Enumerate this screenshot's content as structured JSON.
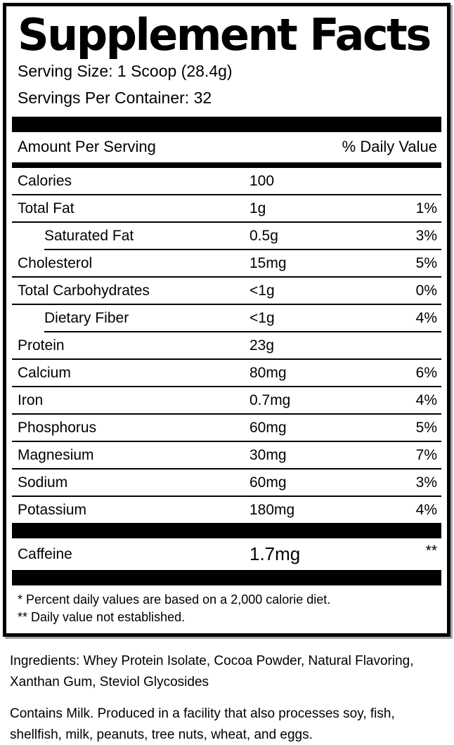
{
  "label": {
    "title": "Supplement Facts",
    "serving_size": "Serving Size: 1 Scoop (28.4g)",
    "servings_per_container": "Servings Per Container: 32",
    "columns": {
      "amount": "Amount Per Serving",
      "daily_value": "% Daily Value"
    },
    "rows": [
      {
        "name": "Calories",
        "amount": "100",
        "dv": "",
        "indent": false
      },
      {
        "name": "Total Fat",
        "amount": "1g",
        "dv": "1%",
        "indent": false
      },
      {
        "name": "Saturated Fat",
        "amount": "0.5g",
        "dv": "3%",
        "indent": true
      },
      {
        "name": "Cholesterol",
        "amount": "15mg",
        "dv": "5%",
        "indent": false
      },
      {
        "name": "Total Carbohydrates",
        "amount": "<1g",
        "dv": "0%",
        "indent": false
      },
      {
        "name": "Dietary Fiber",
        "amount": "<1g",
        "dv": "4%",
        "indent": true
      },
      {
        "name": "Protein",
        "amount": "23g",
        "dv": "",
        "indent": false
      },
      {
        "name": "Calcium",
        "amount": "80mg",
        "dv": "6%",
        "indent": false
      },
      {
        "name": "Iron",
        "amount": "0.7mg",
        "dv": "4%",
        "indent": false
      },
      {
        "name": "Phosphorus",
        "amount": "60mg",
        "dv": "5%",
        "indent": false
      },
      {
        "name": "Magnesium",
        "amount": "30mg",
        "dv": "7%",
        "indent": false
      },
      {
        "name": "Sodium",
        "amount": "60mg",
        "dv": "3%",
        "indent": false
      },
      {
        "name": "Potassium",
        "amount": "180mg",
        "dv": "4%",
        "indent": false
      }
    ],
    "caffeine_row": {
      "name": "Caffeine",
      "amount": "1.7mg",
      "dv": "**"
    },
    "footnotes": [
      "* Percent daily values are based on a 2,000 calorie diet.",
      "** Daily value not established."
    ]
  },
  "ingredients": "Ingredients: Whey Protein Isolate, Cocoa Powder, Natural Flavoring, Xanthan Gum, Steviol Glycosides",
  "allergen": "Contains Milk. Produced in a facility that also processes soy, fish, shellfish, milk, peanuts, tree nuts, wheat, and eggs.",
  "colors": {
    "text": "#000000",
    "background": "#ffffff",
    "bar": "#000000"
  }
}
